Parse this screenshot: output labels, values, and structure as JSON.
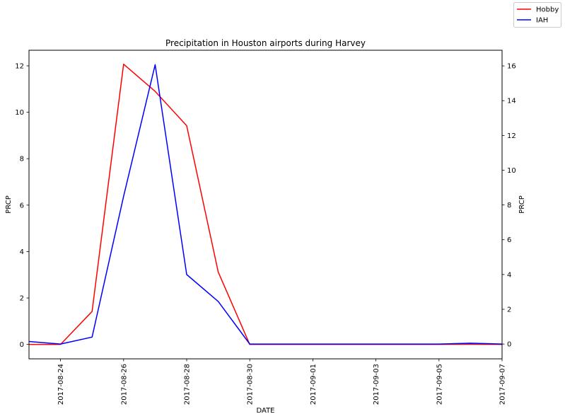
{
  "chart_data": {
    "type": "line",
    "title": "Precipitation in Houston airports during Harvey",
    "xlabel": "DATE",
    "ylabel_left": "PRCP",
    "ylabel_right": "PRCP",
    "x": [
      "2017-08-23",
      "2017-08-24",
      "2017-08-25",
      "2017-08-26",
      "2017-08-27",
      "2017-08-28",
      "2017-08-29",
      "2017-08-30",
      "2017-08-31",
      "2017-09-01",
      "2017-09-02",
      "2017-09-03",
      "2017-09-04",
      "2017-09-05",
      "2017-09-06",
      "2017-09-07"
    ],
    "xlim": [
      "2017-08-23",
      "2017-09-07"
    ],
    "x_ticks": [
      "2017-08-24",
      "2017-08-26",
      "2017-08-28",
      "2017-08-30",
      "2017-09-01",
      "2017-09-03",
      "2017-09-05",
      "2017-09-07"
    ],
    "ylim_left": [
      -0.62,
      12.67
    ],
    "yticks_left": [
      "0",
      "2",
      "4",
      "6",
      "8",
      "10",
      "12"
    ],
    "ylim_right": [
      -0.85,
      16.9
    ],
    "yticks_right": [
      "0",
      "2",
      "4",
      "6",
      "8",
      "10",
      "12",
      "14",
      "16"
    ],
    "legend_placement": "top-right",
    "grid": false,
    "series": [
      {
        "name": "Hobby",
        "axis": "left",
        "color": "#ff0000",
        "values": [
          0.0,
          0.0,
          1.42,
          12.07,
          10.9,
          9.42,
          3.12,
          0.0,
          0.0,
          0.0,
          0.0,
          0.0,
          0.0,
          0.0,
          0.01,
          0.0
        ]
      },
      {
        "name": "IAH",
        "axis": "right",
        "color": "#0000ff",
        "values": [
          0.15,
          0.0,
          0.4,
          8.5,
          16.07,
          4.0,
          2.45,
          0.0,
          0.0,
          0.0,
          0.0,
          0.0,
          0.0,
          0.0,
          0.05,
          0.0
        ]
      }
    ]
  }
}
